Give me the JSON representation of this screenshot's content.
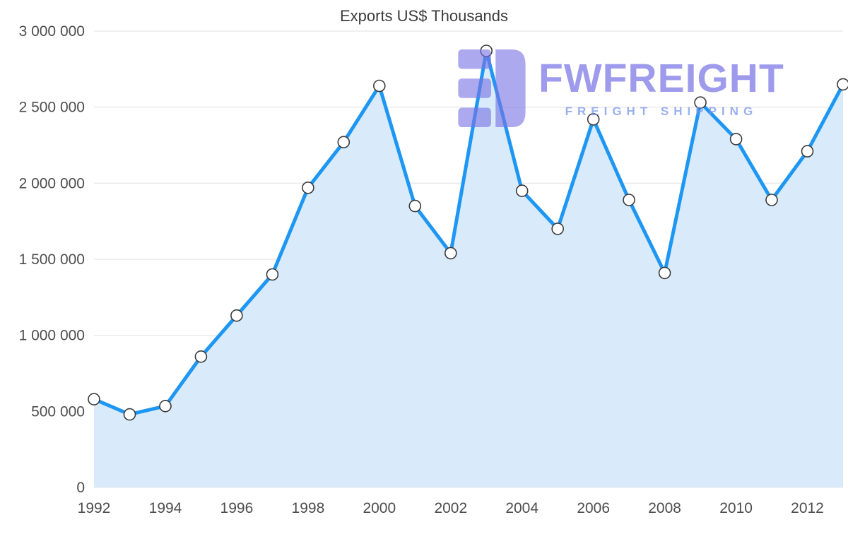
{
  "chart_data": {
    "type": "area",
    "title": "Exports US$ Thousands",
    "x": [
      1992,
      1993,
      1994,
      1995,
      1996,
      1997,
      1998,
      1999,
      2000,
      2001,
      2002,
      2003,
      2004,
      2005,
      2006,
      2007,
      2008,
      2009,
      2010,
      2011,
      2012,
      2013
    ],
    "values": [
      580000,
      480000,
      535000,
      860000,
      1130000,
      1400000,
      1970000,
      2270000,
      2640000,
      1850000,
      1540000,
      2870000,
      1950000,
      1700000,
      2420000,
      1890000,
      1410000,
      2530000,
      2290000,
      1890000,
      2210000,
      2650000
    ],
    "xlabel": "",
    "ylabel": "",
    "ylim": [
      0,
      3000000
    ],
    "xlim": [
      1992,
      2013
    ],
    "ytick_values": [
      0,
      500000,
      1000000,
      1500000,
      2000000,
      2500000,
      3000000
    ],
    "ytick_labels": [
      "0",
      "500 000",
      "1 000 000",
      "1 500 000",
      "2 000 000",
      "2 500 000",
      "3 000 000"
    ],
    "xtick_values": [
      1992,
      1994,
      1996,
      1998,
      2000,
      2002,
      2004,
      2006,
      2008,
      2010,
      2012
    ],
    "xtick_labels": [
      "1992",
      "1994",
      "1996",
      "1998",
      "2000",
      "2002",
      "2004",
      "2006",
      "2008",
      "2010",
      "2012"
    ],
    "grid": true,
    "legend": "none",
    "marker": "circle",
    "colors": {
      "line": "#1E96F3",
      "area": "#D9EBFB",
      "marker_fill": "#FFFFFF",
      "marker_stroke": "#3A3A3A",
      "gridline": "#E0E0E0",
      "axis_text": "#4D4D4D",
      "title_text": "#3C3C3C"
    }
  },
  "watermark": {
    "brand": "FWFREIGHT",
    "tagline": "FREIGHT SHIPPING",
    "color": "#7A75E4",
    "logo_icon": "fwfreight-logo"
  }
}
